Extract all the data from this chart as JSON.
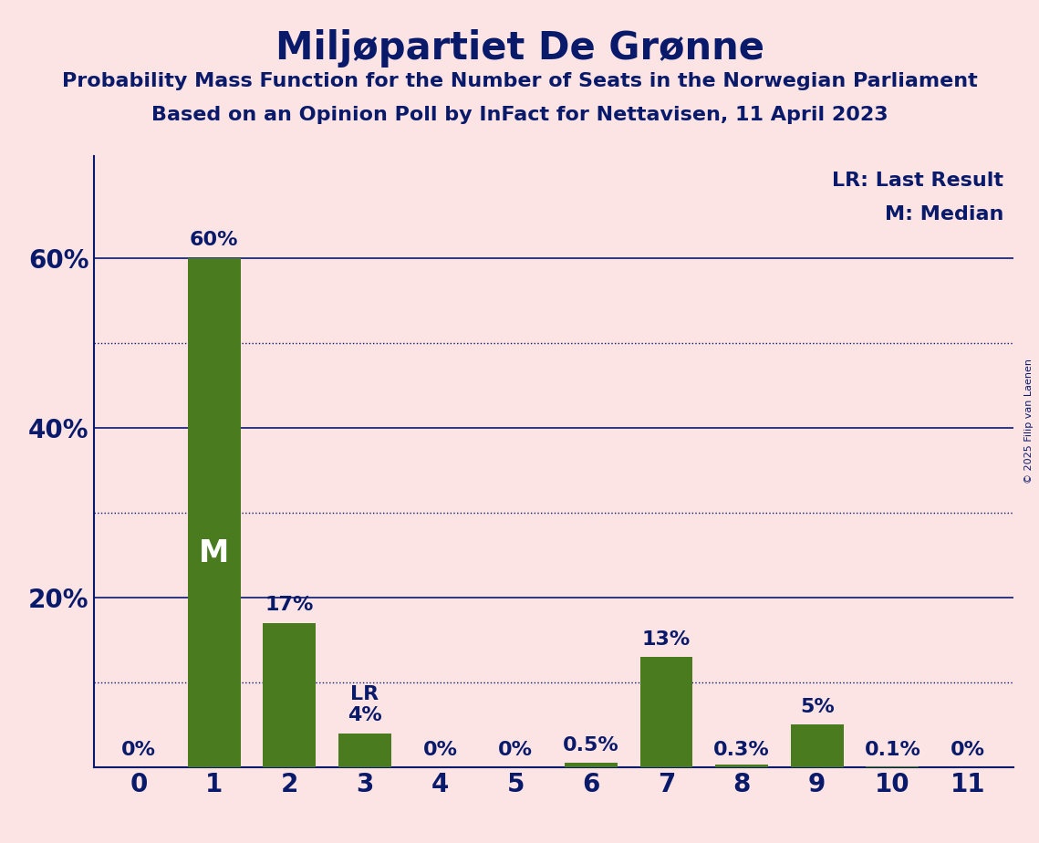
{
  "title": "Miljøpartiet De Grønne",
  "subtitle1": "Probability Mass Function for the Number of Seats in the Norwegian Parliament",
  "subtitle2": "Based on an Opinion Poll by InFact for Nettavisen, 11 April 2023",
  "copyright": "© 2025 Filip van Laenen",
  "categories": [
    0,
    1,
    2,
    3,
    4,
    5,
    6,
    7,
    8,
    9,
    10,
    11
  ],
  "values": [
    0.0,
    60.0,
    17.0,
    4.0,
    0.0,
    0.0,
    0.5,
    13.0,
    0.3,
    5.0,
    0.1,
    0.0
  ],
  "bar_color": "#4a7c1f",
  "background_color": "#fce4e4",
  "text_color": "#0a1a6b",
  "yticks": [
    20,
    40,
    60
  ],
  "ytick_labels": [
    "20%",
    "40%",
    "60%"
  ],
  "ylim": [
    0,
    72
  ],
  "bar_labels": [
    "0%",
    "60%",
    "17%",
    "4%",
    "0%",
    "0%",
    "0.5%",
    "13%",
    "0.3%",
    "5%",
    "0.1%",
    "0%"
  ],
  "median_bar": 1,
  "lr_bar": 3,
  "lr_label": "LR",
  "median_label": "M",
  "legend_lr": "LR: Last Result",
  "legend_m": "M: Median",
  "solid_lines": [
    20,
    40,
    60
  ],
  "dotted_lines": [
    10,
    30,
    50
  ],
  "title_fontsize": 30,
  "subtitle_fontsize": 16,
  "tick_fontsize": 20,
  "bar_label_fontsize": 16,
  "legend_fontsize": 16,
  "median_fontsize": 24
}
